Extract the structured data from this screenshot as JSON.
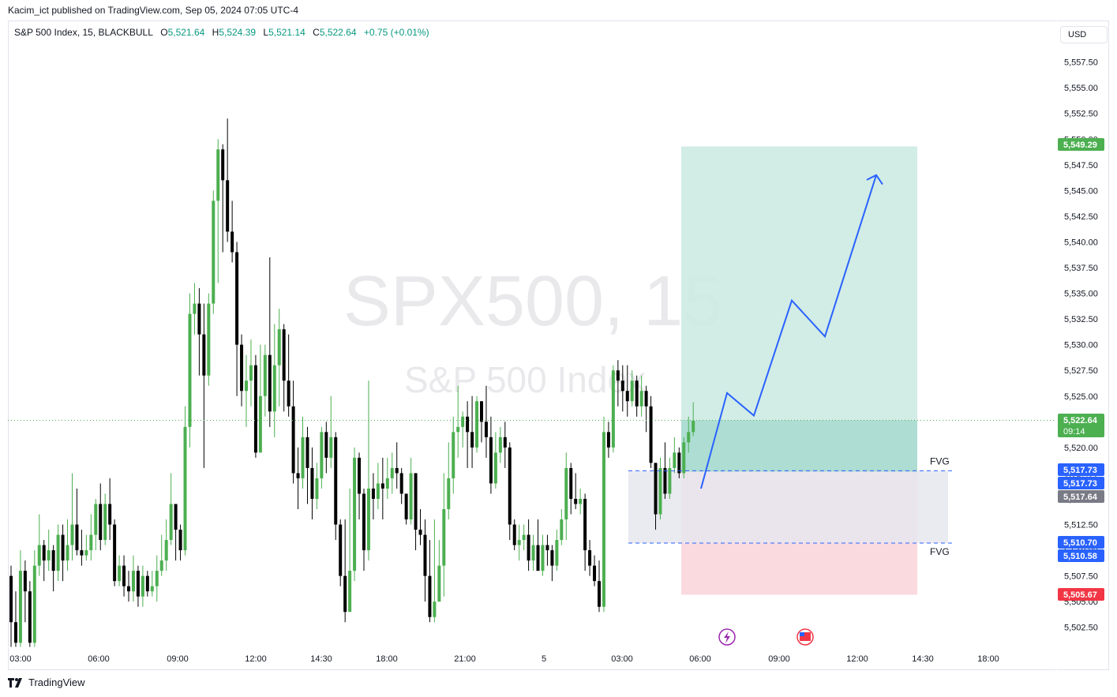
{
  "publisher_line": "Kacim_ict published on TradingView.com, Sep 05, 2024 07:05 UTC-4",
  "legend": {
    "symbol": "S&P 500 Index, 15, BLACKBULL",
    "open_label": "O",
    "open": "5,521.64",
    "high_label": "H",
    "high": "5,524.39",
    "low_label": "L",
    "low": "5,521.14",
    "close_label": "C",
    "close": "5,522.64",
    "change": "+0.75 (+0.01%)"
  },
  "currency_button": "USD",
  "watermark": {
    "symbol": "SPX500, 15",
    "name": "S&P 500 Index"
  },
  "footer_brand": "TradingView",
  "colors": {
    "up": "#4caf50",
    "down": "#000000",
    "accent_blue": "#2962ff",
    "target_zone": "#cdeae3",
    "stop_zone": "#f9d6dc",
    "fvg_zone": "#e6e6ee",
    "price_tag_green": "#4caf50",
    "price_tag_red": "#f23645",
    "price_tag_gray": "#787b86"
  },
  "annotations": {
    "fvg_upper": "FVG",
    "fvg_lower": "FVG"
  },
  "chart_data": {
    "type": "candlestick",
    "title": "",
    "x_ticks": [
      "03:00",
      "06:00",
      "09:00",
      "12:00",
      "14:30",
      "18:00",
      "21:00",
      "5",
      "03:00",
      "06:00",
      "09:00",
      "12:00",
      "14:30",
      "18:00"
    ],
    "y_ticks": [
      "5,502.50",
      "5,505.00",
      "5,507.50",
      "5,510.00",
      "5,512.50",
      "5,515.00",
      "5,517.50",
      "5,520.00",
      "5,522.50",
      "5,525.00",
      "5,527.50",
      "5,530.00",
      "5,532.50",
      "5,535.00",
      "5,537.50",
      "5,540.00",
      "5,542.50",
      "5,545.00",
      "5,547.50",
      "5,550.00",
      "5,552.50",
      "5,555.00",
      "5,557.50"
    ],
    "ylim": [
      5500.5,
      5559.5
    ],
    "last_price": {
      "value": 5522.64,
      "label": "5,522.64",
      "countdown": "09:14"
    },
    "price_tags": [
      {
        "value": 5549.29,
        "label": "5,549.29",
        "color": "green"
      },
      {
        "value": 5517.73,
        "label": "5,517.73",
        "color": "blue"
      },
      {
        "value": 5517.73,
        "label": "5,517.73",
        "color": "blue"
      },
      {
        "value": 5517.64,
        "label": "5,517.64",
        "color": "gray"
      },
      {
        "value": 5510.7,
        "label": "5,510.70",
        "color": "blue"
      },
      {
        "value": 5510.58,
        "label": "5,510.58",
        "color": "blue"
      },
      {
        "value": 5505.67,
        "label": "5,505.67",
        "color": "red"
      }
    ],
    "position": {
      "entry": 5517.64,
      "target": 5549.29,
      "stop": 5505.67
    },
    "fvg": {
      "top": 5517.73,
      "bottom": 5510.7
    },
    "projection_path": [
      5516.0,
      5525.3,
      5523.1,
      5534.3,
      5530.8,
      5546.5,
      5545.6
    ],
    "candles": [
      [
        5507.5,
        5503.0,
        5508.5,
        5500.5
      ],
      [
        5503.0,
        5501.0,
        5506.0,
        5500.5
      ],
      [
        5501.0,
        5508.0,
        5510.0,
        5500.5
      ],
      [
        5508.0,
        5506.0,
        5509.0,
        5503.0
      ],
      [
        5506.0,
        5501.0,
        5507.0,
        5500.5
      ],
      [
        5501.0,
        5508.5,
        5510.0,
        5500.5
      ],
      [
        5508.5,
        5510.5,
        5513.5,
        5507.5
      ],
      [
        5510.5,
        5509.0,
        5511.0,
        5507.0
      ],
      [
        5509.0,
        5510.0,
        5512.0,
        5508.0
      ],
      [
        5510.0,
        5508.0,
        5510.5,
        5506.0
      ],
      [
        5508.0,
        5511.5,
        5512.5,
        5507.0
      ],
      [
        5511.5,
        5509.0,
        5512.5,
        5507.0
      ],
      [
        5509.0,
        5510.5,
        5513.0,
        5508.0
      ],
      [
        5510.5,
        5512.5,
        5517.5,
        5509.0
      ],
      [
        5512.5,
        5510.0,
        5516.0,
        5509.5
      ],
      [
        5510.0,
        5509.5,
        5512.0,
        5508.5
      ],
      [
        5509.5,
        5510.0,
        5511.5,
        5509.0
      ],
      [
        5510.0,
        5511.5,
        5513.5,
        5509.0
      ],
      [
        5511.5,
        5514.5,
        5515.0,
        5510.0
      ],
      [
        5514.5,
        5511.0,
        5516.5,
        5510.0
      ],
      [
        5511.0,
        5514.5,
        5515.5,
        5510.5
      ],
      [
        5514.5,
        5512.5,
        5517.0,
        5511.0
      ],
      [
        5512.5,
        5507.0,
        5513.0,
        5506.5
      ],
      [
        5507.0,
        5508.5,
        5509.5,
        5506.5
      ],
      [
        5508.5,
        5506.5,
        5509.5,
        5505.5
      ],
      [
        5506.5,
        5506.0,
        5508.0,
        5505.0
      ],
      [
        5506.0,
        5508.0,
        5509.5,
        5505.0
      ],
      [
        5508.0,
        5505.5,
        5508.5,
        5504.5
      ],
      [
        5505.5,
        5507.5,
        5508.5,
        5504.5
      ],
      [
        5507.5,
        5506.0,
        5508.0,
        5505.5
      ],
      [
        5506.0,
        5506.5,
        5508.0,
        5505.5
      ],
      [
        5506.5,
        5508.0,
        5509.5,
        5505.0
      ],
      [
        5508.0,
        5509.0,
        5511.5,
        5507.5
      ],
      [
        5509.0,
        5511.0,
        5513.0,
        5508.0
      ],
      [
        5511.0,
        5514.5,
        5517.5,
        5510.5
      ],
      [
        5514.5,
        5512.0,
        5514.5,
        5509.0
      ],
      [
        5512.0,
        5510.0,
        5512.5,
        5509.0
      ],
      [
        5510.0,
        5522.0,
        5524.0,
        5509.5
      ],
      [
        5522.0,
        5533.0,
        5535.0,
        5520.0
      ],
      [
        5533.0,
        5534.0,
        5536.0,
        5531.0
      ],
      [
        5534.0,
        5531.0,
        5535.5,
        5527.0
      ],
      [
        5531.0,
        5527.0,
        5534.0,
        5518.0
      ],
      [
        5527.0,
        5534.0,
        5535.0,
        5526.0
      ],
      [
        5534.0,
        5544.0,
        5545.0,
        5533.0
      ],
      [
        5544.0,
        5549.0,
        5550.0,
        5536.0
      ],
      [
        5549.0,
        5546.0,
        5549.5,
        5539.0
      ],
      [
        5546.0,
        5541.0,
        5552.0,
        5540.0
      ],
      [
        5541.0,
        5539.0,
        5544.0,
        5538.0
      ],
      [
        5539.0,
        5530.0,
        5540.0,
        5525.0
      ],
      [
        5530.0,
        5525.5,
        5531.0,
        5524.0
      ],
      [
        5525.5,
        5526.5,
        5529.0,
        5522.0
      ],
      [
        5526.5,
        5528.0,
        5530.5,
        5524.0
      ],
      [
        5528.0,
        5519.5,
        5529.0,
        5519.0
      ],
      [
        5519.5,
        5525.0,
        5530.0,
        5522.0
      ],
      [
        5525.0,
        5529.0,
        5530.0,
        5523.0
      ],
      [
        5529.0,
        5523.5,
        5538.5,
        5522.0
      ],
      [
        5523.5,
        5528.0,
        5532.0,
        5521.0
      ],
      [
        5528.0,
        5531.5,
        5533.5,
        5524.0
      ],
      [
        5531.5,
        5526.5,
        5532.0,
        5523.5
      ],
      [
        5526.5,
        5524.0,
        5531.0,
        5523.0
      ],
      [
        5524.0,
        5517.5,
        5526.5,
        5516.5
      ],
      [
        5517.5,
        5517.0,
        5520.0,
        5514.0
      ],
      [
        5517.0,
        5521.0,
        5523.0,
        5516.0
      ],
      [
        5521.0,
        5518.0,
        5522.0,
        5514.5
      ],
      [
        5518.0,
        5515.0,
        5520.0,
        5513.0
      ],
      [
        5515.0,
        5517.0,
        5518.5,
        5514.0
      ],
      [
        5517.0,
        5521.5,
        5522.0,
        5516.0
      ],
      [
        5521.5,
        5519.0,
        5522.5,
        5517.5
      ],
      [
        5519.0,
        5521.0,
        5525.0,
        5518.0
      ],
      [
        5521.0,
        5512.5,
        5521.5,
        5511.0
      ],
      [
        5512.5,
        5507.5,
        5513.0,
        5506.5
      ],
      [
        5507.5,
        5504.0,
        5513.0,
        5503.0
      ],
      [
        5504.0,
        5508.0,
        5516.0,
        5507.5
      ],
      [
        5508.0,
        5519.0,
        5520.0,
        5507.0
      ],
      [
        5519.0,
        5515.5,
        5519.5,
        5513.0
      ],
      [
        5515.5,
        5510.0,
        5516.0,
        5508.0
      ],
      [
        5510.0,
        5516.0,
        5526.5,
        5509.0
      ],
      [
        5516.0,
        5515.0,
        5517.5,
        5513.0
      ],
      [
        5515.0,
        5516.5,
        5518.5,
        5514.0
      ],
      [
        5516.5,
        5516.0,
        5519.0,
        5513.0
      ],
      [
        5516.0,
        5517.0,
        5519.0,
        5515.0
      ],
      [
        5517.0,
        5518.0,
        5519.5,
        5515.5
      ],
      [
        5518.0,
        5517.5,
        5520.5,
        5516.0
      ],
      [
        5517.5,
        5515.5,
        5518.0,
        5514.5
      ],
      [
        5515.5,
        5513.0,
        5515.5,
        5512.5
      ],
      [
        5513.0,
        5517.5,
        5519.0,
        5512.5
      ],
      [
        5517.5,
        5512.0,
        5517.5,
        5510.0
      ],
      [
        5512.0,
        5511.5,
        5514.0,
        5510.5
      ],
      [
        5511.5,
        5507.5,
        5513.0,
        5505.0
      ],
      [
        5507.5,
        5503.5,
        5511.0,
        5503.0
      ],
      [
        5503.5,
        5505.0,
        5513.0,
        5503.0
      ],
      [
        5505.0,
        5508.5,
        5511.0,
        5505.0
      ],
      [
        5508.5,
        5514.0,
        5517.5,
        5505.5
      ],
      [
        5514.0,
        5517.0,
        5520.5,
        5513.0
      ],
      [
        5517.0,
        5521.5,
        5523.0,
        5515.5
      ],
      [
        5521.5,
        5522.0,
        5526.0,
        5519.0
      ],
      [
        5522.0,
        5523.0,
        5523.5,
        5520.0
      ],
      [
        5523.0,
        5521.5,
        5524.5,
        5518.0
      ],
      [
        5521.5,
        5520.0,
        5525.0,
        5518.0
      ],
      [
        5520.0,
        5524.5,
        5525.0,
        5519.5
      ],
      [
        5524.5,
        5522.5,
        5524.5,
        5520.5
      ],
      [
        5522.5,
        5521.0,
        5526.0,
        5519.0
      ],
      [
        5521.0,
        5516.5,
        5523.0,
        5515.5
      ],
      [
        5516.5,
        5519.5,
        5521.5,
        5516.0
      ],
      [
        5519.5,
        5521.0,
        5522.0,
        5518.5
      ],
      [
        5521.0,
        5520.0,
        5522.5,
        5518.0
      ],
      [
        5520.0,
        5512.5,
        5520.5,
        5511.0
      ],
      [
        5512.5,
        5510.5,
        5513.0,
        5510.0
      ],
      [
        5510.5,
        5511.0,
        5512.5,
        5509.0
      ],
      [
        5511.0,
        5511.5,
        5512.5,
        5510.0
      ],
      [
        5511.5,
        5509.0,
        5513.0,
        5508.0
      ],
      [
        5509.0,
        5510.5,
        5511.5,
        5508.0
      ],
      [
        5510.5,
        5508.0,
        5513.0,
        5508.0
      ],
      [
        5508.0,
        5510.5,
        5511.5,
        5507.5
      ],
      [
        5510.5,
        5510.0,
        5511.5,
        5508.5
      ],
      [
        5510.0,
        5508.5,
        5510.5,
        5507.0
      ],
      [
        5508.5,
        5511.0,
        5512.0,
        5508.0
      ],
      [
        5511.0,
        5513.0,
        5514.0,
        5510.5
      ],
      [
        5513.0,
        5518.0,
        5519.5,
        5511.0
      ],
      [
        5518.0,
        5515.0,
        5518.5,
        5513.5
      ],
      [
        5515.0,
        5514.5,
        5517.5,
        5514.0
      ],
      [
        5514.5,
        5515.0,
        5516.0,
        5513.5
      ],
      [
        5515.0,
        5510.0,
        5515.5,
        5508.0
      ],
      [
        5510.0,
        5508.5,
        5511.0,
        5507.5
      ],
      [
        5508.5,
        5507.0,
        5509.5,
        5506.5
      ],
      [
        5507.0,
        5504.5,
        5509.0,
        5504.0
      ],
      [
        5504.5,
        5521.5,
        5523.0,
        5504.0
      ],
      [
        5521.5,
        5520.0,
        5522.5,
        5519.0
      ],
      [
        5520.0,
        5527.5,
        5528.0,
        5519.5
      ],
      [
        5527.5,
        5526.5,
        5528.5,
        5524.0
      ],
      [
        5526.5,
        5525.5,
        5528.0,
        5523.5
      ],
      [
        5525.5,
        5524.5,
        5528.0,
        5523.0
      ],
      [
        5524.5,
        5526.5,
        5527.5,
        5524.0
      ],
      [
        5526.5,
        5524.0,
        5527.0,
        5523.0
      ],
      [
        5524.0,
        5525.5,
        5527.0,
        5523.0
      ],
      [
        5525.5,
        5524.0,
        5526.0,
        5521.5
      ],
      [
        5524.0,
        5518.5,
        5525.0,
        5518.0
      ],
      [
        5518.5,
        5513.5,
        5518.5,
        5512.0
      ],
      [
        5513.5,
        5518.0,
        5519.0,
        5513.0
      ],
      [
        5518.0,
        5515.5,
        5520.5,
        5515.0
      ],
      [
        5515.5,
        5518.0,
        5519.0,
        5515.0
      ],
      [
        5518.0,
        5519.5,
        5521.0,
        5517.5
      ],
      [
        5519.5,
        5517.5,
        5520.0,
        5517.0
      ],
      [
        5517.5,
        5520.5,
        5521.0,
        5517.0
      ],
      [
        5520.5,
        5521.5,
        5523.0,
        5519.5
      ],
      [
        5521.5,
        5522.6,
        5524.4,
        5521.1
      ]
    ]
  }
}
